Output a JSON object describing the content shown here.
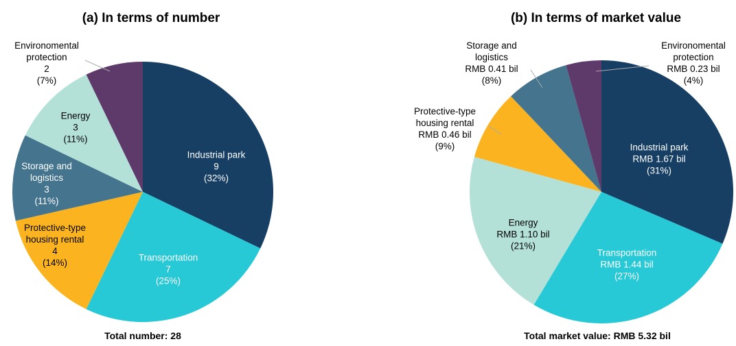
{
  "chart_data": [
    {
      "type": "pie",
      "title": "(a)  In terms of number",
      "categories": [
        "Industrial park",
        "Transportation",
        "Protective-type housing rental",
        "Storage and logistics",
        "Energy",
        "Environomental protection"
      ],
      "values": [
        9,
        7,
        4,
        3,
        3,
        2
      ],
      "percent_labels": [
        "(32%)",
        "(25%)",
        "(14%)",
        "(11%)",
        "(11%)",
        "(7%)"
      ],
      "colors": [
        "#173f64",
        "#26c9d5",
        "#fbb41f",
        "#44748e",
        "#b4e1d7",
        "#5e3a6b"
      ],
      "footer": "Total number: 28"
    },
    {
      "type": "pie",
      "title": "(b)  In terms of market value",
      "categories": [
        "Industrial park",
        "Transportation",
        "Energy",
        "Protective-type housing rental",
        "Storage and logistics",
        "Environomental protection"
      ],
      "values": [
        1.67,
        1.44,
        1.1,
        0.46,
        0.41,
        0.23
      ],
      "value_labels": [
        "RMB 1.67 bil",
        "RMB 1.44 bil",
        "RMB 1.10 bil",
        "RMB 0.46 bil",
        "RMB 0.41 bil",
        "RMB 0.23 bil"
      ],
      "percent_labels": [
        "(31%)",
        "(27%)",
        "(21%)",
        "(9%)",
        "(8%)",
        "(4%)"
      ],
      "colors": [
        "#173f64",
        "#26c9d5",
        "#b4e1d7",
        "#fbb41f",
        "#44748e",
        "#5e3a6b"
      ],
      "footer": "Total market value: RMB 5.32 bil"
    }
  ]
}
